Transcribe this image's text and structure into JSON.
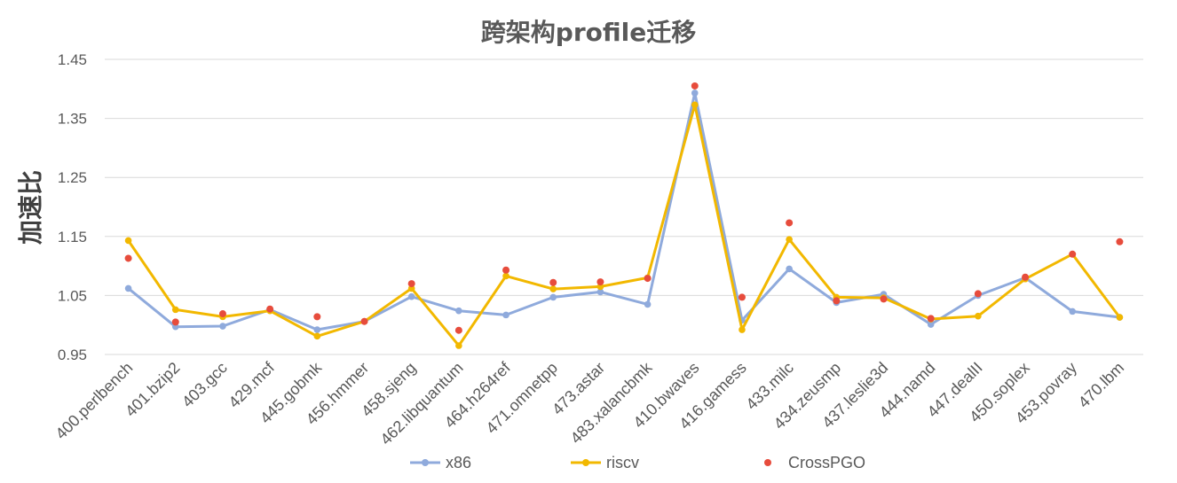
{
  "chart_data": {
    "type": "line",
    "title": "跨架构profile迁移",
    "ylabel": "加速比",
    "xlabel": "",
    "ylim": [
      0.95,
      1.45
    ],
    "yticks": [
      "0.95",
      "1.05",
      "1.15",
      "1.25",
      "1.35",
      "1.45"
    ],
    "grid": true,
    "legend_position": "bottom",
    "categories": [
      "400.perlbench",
      "401.bzip2",
      "403.gcc",
      "429.mcf",
      "445.gobmk",
      "456.hmmer",
      "458.sjeng",
      "462.libquantum",
      "464.h264ref",
      "471.omnetpp",
      "473.astar",
      "483.xalancbmk",
      "410.bwaves",
      "416.gamess",
      "433.milc",
      "434.zeusmp",
      "437.leslie3d",
      "444.namd",
      "447.dealII",
      "450.soplex",
      "453.povray",
      "470.lbm"
    ],
    "series": [
      {
        "name": "x86",
        "style": "line-marker",
        "color": "#8faadc",
        "values": [
          1.062,
          0.997,
          0.998,
          1.026,
          0.992,
          1.006,
          1.048,
          1.024,
          1.017,
          1.047,
          1.056,
          1.035,
          1.393,
          1.008,
          1.095,
          1.038,
          1.052,
          1.001,
          1.05,
          1.08,
          1.023,
          1.013
        ]
      },
      {
        "name": "riscv",
        "style": "line-marker",
        "color": "#f2b800",
        "values": [
          1.143,
          1.026,
          1.014,
          1.024,
          0.981,
          1.006,
          1.062,
          0.965,
          1.083,
          1.061,
          1.065,
          1.08,
          1.373,
          0.992,
          1.145,
          1.047,
          1.046,
          1.01,
          1.015,
          1.078,
          1.12,
          1.013
        ]
      },
      {
        "name": "CrossPGO",
        "style": "marker-only",
        "color": "#e74c3c",
        "values": [
          1.113,
          1.005,
          1.019,
          1.027,
          1.014,
          1.006,
          1.07,
          0.991,
          1.093,
          1.072,
          1.073,
          1.079,
          1.405,
          1.047,
          1.173,
          1.041,
          1.044,
          1.011,
          1.053,
          1.081,
          1.12,
          1.141
        ]
      }
    ]
  }
}
